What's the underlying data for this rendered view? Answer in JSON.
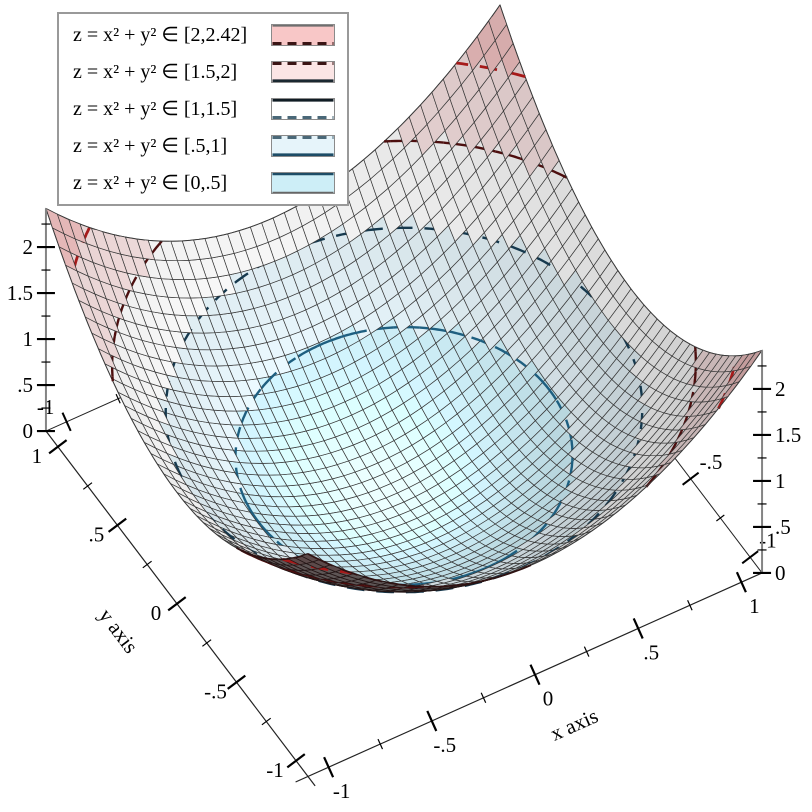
{
  "page": {
    "background": "#ffffff"
  },
  "legend": {
    "border_color": "#999999",
    "entries": [
      {
        "label": "z = x² + y² ∈ [2,2.42]",
        "fill": "#f8c7c7",
        "top": {
          "dash": false,
          "color": "#6e6e6e",
          "w": 1.6
        },
        "bottom": {
          "dash": true,
          "color": "#3a1414",
          "w": 3
        }
      },
      {
        "label": "z = x² + y² ∈ [1.5,2]",
        "fill": "#fbe5e5",
        "top": {
          "dash": true,
          "color": "#3a1414",
          "w": 3
        },
        "bottom": {
          "dash": false,
          "color": "#1a2830",
          "w": 2.6
        }
      },
      {
        "label": "z = x² + y² ∈ [1,1.5]",
        "fill": "#ffffff",
        "top": {
          "dash": false,
          "color": "#101c24",
          "w": 2.6
        },
        "bottom": {
          "dash": true,
          "color": "#4a6878",
          "w": 3
        }
      },
      {
        "label": "z = x² + y² ∈ [.5,1]",
        "fill": "#e6f4fa",
        "top": {
          "dash": true,
          "color": "#4a6878",
          "w": 3
        },
        "bottom": {
          "dash": false,
          "color": "#1d4c66",
          "w": 2.6
        }
      },
      {
        "label": "z = x² + y² ∈ [0,.5]",
        "fill": "#cdeef7",
        "top": {
          "dash": false,
          "color": "#1d4c66",
          "w": 2.2
        },
        "bottom": {
          "dash": false,
          "color": "#666666",
          "w": 1.2
        }
      }
    ]
  },
  "axes": {
    "x": {
      "title": "x axis",
      "tick_labels": [
        "-1",
        "-.5",
        "0",
        ".5",
        "1"
      ],
      "tick_values": [
        -1,
        -0.5,
        0,
        0.5,
        1
      ],
      "minor": [
        -0.75,
        -0.25,
        0.25,
        0.75
      ]
    },
    "y": {
      "title": "y axis",
      "tick_labels": [
        "-1",
        "-.5",
        "0",
        ".5",
        "1"
      ],
      "tick_values": [
        -1,
        -0.5,
        0,
        0.5,
        1
      ],
      "minor": [
        -0.75,
        -0.25,
        0.25,
        0.75
      ]
    },
    "z": {
      "tick_labels": [
        "0",
        ".5",
        "1",
        "1.5",
        "2"
      ],
      "tick_values": [
        0,
        0.5,
        1,
        1.5,
        2
      ],
      "minor": [
        0.25,
        0.75,
        1.25,
        1.75,
        2.25
      ]
    },
    "far_x": {
      "tick_labels": [
        "-1"
      ],
      "tick_values": [
        -1
      ]
    },
    "far_y": {
      "tick_labels": [
        "-1",
        "-.5"
      ],
      "tick_values": [
        -1,
        -0.5
      ]
    }
  },
  "chart_data": {
    "type": "surface3d",
    "function": "z = x² + y²",
    "x_label": "x axis",
    "y_label": "y axis",
    "x_range": [
      -1.1,
      1.1
    ],
    "y_range": [
      -1.1,
      1.1
    ],
    "z_range": [
      0,
      2.42
    ],
    "grid_cells": 40,
    "intervals": [
      {
        "z": [
          0,
          0.5
        ],
        "color": "#cdeef7"
      },
      {
        "z": [
          0.5,
          1
        ],
        "color": "#e6f4fa"
      },
      {
        "z": [
          1,
          1.5
        ],
        "color": "#ffffff"
      },
      {
        "z": [
          1.5,
          2
        ],
        "color": "#fbe5e5"
      },
      {
        "z": [
          2,
          2.42
        ],
        "color": "#f8c7c7"
      }
    ],
    "contour_lines": [
      {
        "level": 0.5,
        "style": "solid",
        "color": "#1e5f80",
        "width": 2.4
      },
      {
        "level": 1,
        "style": "long-dash",
        "color": "#16394e",
        "width": 2.4
      },
      {
        "level": 1.5,
        "style": "solid",
        "color": "#4d0f0f",
        "width": 2.4
      },
      {
        "level": 2,
        "style": "long-dash",
        "color": "#a61a1a",
        "width": 2.8
      }
    ]
  }
}
